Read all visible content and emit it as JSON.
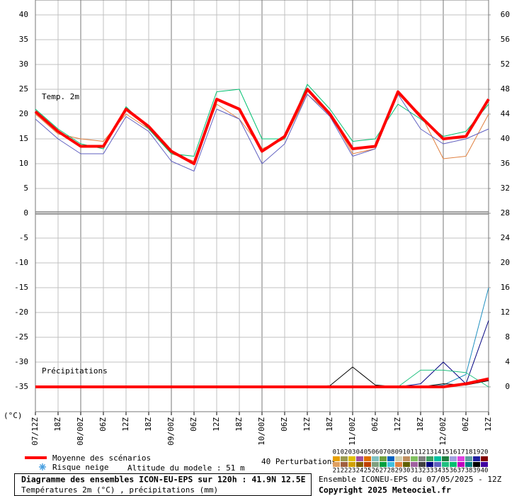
{
  "chart_data": {
    "type": "line",
    "title": "Diagramme des ensembles ICON-EU-EPS sur 120h : 41.9N 12.5E",
    "subtitle": "Températures 2m (°C) , précipitations (mm)",
    "source": "Ensemble ICONEU-EPS du 07/05/2025 - 12Z",
    "copyright": "Copyright 2025 Meteociel.fr",
    "temp_label": "Temp. 2m",
    "precip_label": "Précipitations",
    "y_unit_label": "(°C)",
    "snow_label": "Risque neige",
    "altitude_label": "Altitude du modele : 51 m",
    "perturbations_label": "40 Perturbations",
    "grid": true,
    "categories": [
      "07/12Z",
      "18Z",
      "08/00Z",
      "06Z",
      "12Z",
      "18Z",
      "09/00Z",
      "06Z",
      "12Z",
      "18Z",
      "10/00Z",
      "06Z",
      "12Z",
      "18Z",
      "11/00Z",
      "06Z",
      "12Z",
      "18Z",
      "12/00Z",
      "06Z",
      "12Z"
    ],
    "ylim": [
      -40,
      40
    ],
    "yticks": [
      40,
      35,
      30,
      25,
      20,
      15,
      10,
      5,
      0,
      -5,
      -10,
      -15,
      -20,
      -25,
      -30,
      -35
    ],
    "y2lim": [
      -4,
      60
    ],
    "y2ticks": [
      60,
      56,
      52,
      48,
      44,
      40,
      36,
      32,
      28,
      24,
      20,
      16,
      12,
      8,
      4,
      0
    ],
    "series": [
      {
        "name": "29",
        "color": "#e08040",
        "values": [
          20,
          16,
          15,
          14.5,
          20,
          17,
          12,
          10.5,
          22,
          19,
          13,
          15,
          24,
          20,
          12,
          13,
          24,
          20,
          11,
          11.5,
          20
        ]
      },
      {
        "name": "36",
        "color": "#00c070",
        "values": [
          21,
          17,
          14,
          13,
          21.5,
          17,
          12,
          11.5,
          24.5,
          25,
          15,
          15,
          26,
          21,
          14.5,
          15,
          22,
          19,
          15.5,
          16.5,
          22
        ]
      },
      {
        "name": "34",
        "color": "#6060c0",
        "values": [
          19,
          15,
          12,
          12,
          19.5,
          16.5,
          10.5,
          8.5,
          21,
          19,
          10,
          14,
          24,
          19.5,
          11.5,
          13,
          24,
          17,
          14,
          15,
          17
        ]
      },
      {
        "name": "06",
        "color": "#2090c0",
        "axis": "y2",
        "values": [
          0,
          0,
          0,
          0,
          0,
          0,
          0,
          0,
          0,
          0,
          0,
          0,
          0,
          0,
          0,
          0,
          0,
          0,
          0.3,
          2,
          16
        ]
      },
      {
        "name": "33",
        "color": "#000080",
        "axis": "y2",
        "values": [
          0,
          0,
          0,
          0,
          0,
          0,
          0,
          0,
          0,
          0,
          0,
          0,
          0,
          0,
          0,
          0,
          0,
          0.5,
          4,
          0.5,
          10.7
        ]
      },
      {
        "name": "39",
        "color": "#000000",
        "axis": "y2",
        "values": [
          0,
          0,
          0,
          0,
          0,
          0,
          0,
          0,
          0,
          0,
          0,
          0,
          0,
          0.2,
          3.2,
          0.3,
          0,
          0,
          0.5,
          0.3,
          1
        ]
      },
      {
        "name": "35",
        "color": "#20c080",
        "axis": "y2",
        "values": [
          0,
          0,
          0,
          0,
          0,
          0,
          0,
          0,
          0,
          0,
          0,
          0,
          0,
          0,
          0,
          0,
          0,
          2.7,
          2.7,
          2.3,
          0
        ]
      },
      {
        "name": "Moyenne des scénarios",
        "color": "#ff0000",
        "width": 4,
        "values": [
          20.5,
          16.5,
          13.5,
          13.5,
          21,
          17.5,
          12.5,
          10,
          23,
          21,
          12.5,
          15.5,
          25,
          20,
          13,
          13.5,
          24.5,
          19.5,
          15,
          15.5,
          23
        ]
      },
      {
        "name": "Moyenne des scénarios",
        "color": "#ff0000",
        "width": 4,
        "axis": "y2",
        "values": [
          0,
          0,
          0,
          0,
          0,
          0,
          0,
          0,
          0,
          0,
          0,
          0,
          0,
          0,
          0,
          0,
          0,
          0,
          0,
          0.5,
          1.3
        ]
      }
    ],
    "perturbations": [
      {
        "name": "01",
        "color": "#e8a000"
      },
      {
        "name": "02",
        "color": "#9a9a50"
      },
      {
        "name": "03",
        "color": "#e0c000"
      },
      {
        "name": "04",
        "color": "#a050a0"
      },
      {
        "name": "05",
        "color": "#e07000"
      },
      {
        "name": "06",
        "color": "#80c0c0"
      },
      {
        "name": "07",
        "color": "#70a040"
      },
      {
        "name": "08",
        "color": "#0060c0"
      },
      {
        "name": "09",
        "color": "#d0d0b0"
      },
      {
        "name": "10",
        "color": "#c09060"
      },
      {
        "name": "11",
        "color": "#80c060"
      },
      {
        "name": "12",
        "color": "#808080"
      },
      {
        "name": "13",
        "color": "#40a060"
      },
      {
        "name": "14",
        "color": "#00c0a0"
      },
      {
        "name": "15",
        "color": "#208040"
      },
      {
        "name": "16",
        "color": "#a0a0e0"
      },
      {
        "name": "17",
        "color": "#e040e0"
      },
      {
        "name": "18",
        "color": "#60a0a0"
      },
      {
        "name": "19",
        "color": "#2020a0"
      },
      {
        "name": "20",
        "color": "#800000"
      },
      {
        "name": "21",
        "color": "#e0a060"
      },
      {
        "name": "22",
        "color": "#a06040"
      },
      {
        "name": "23",
        "color": "#d0a000"
      },
      {
        "name": "24",
        "color": "#806000"
      },
      {
        "name": "25",
        "color": "#c04000"
      },
      {
        "name": "26",
        "color": "#80a080"
      },
      {
        "name": "27",
        "color": "#00a040"
      },
      {
        "name": "28",
        "color": "#40c0e0"
      },
      {
        "name": "29",
        "color": "#e08040"
      },
      {
        "name": "30",
        "color": "#606000"
      },
      {
        "name": "31",
        "color": "#a060a0"
      },
      {
        "name": "32",
        "color": "#404040"
      },
      {
        "name": "33",
        "color": "#000080"
      },
      {
        "name": "34",
        "color": "#6060c0"
      },
      {
        "name": "35",
        "color": "#20c080"
      },
      {
        "name": "36",
        "color": "#00c070"
      },
      {
        "name": "37",
        "color": "#c000c0"
      },
      {
        "name": "38",
        "color": "#008080"
      },
      {
        "name": "39",
        "color": "#000000"
      },
      {
        "name": "40",
        "color": "#4000a0"
      }
    ]
  }
}
